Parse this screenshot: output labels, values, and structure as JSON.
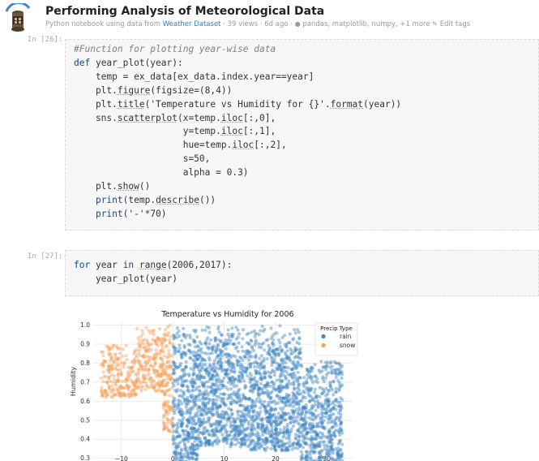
{
  "header": {
    "title": "Performing Analysis of Meteorological Data",
    "meta_prefix": "Python notebook using data from",
    "dataset_link": "Weather Dataset",
    "views": "39 views",
    "age": "6d ago",
    "tags": "pandas, matplotlib, numpy, +1 more",
    "edit_tags": "Edit tags",
    "icons": [
      "avatar-icon",
      "tag-icon",
      "pencil-icon"
    ]
  },
  "cells": [
    {
      "prompt": "In [26]:",
      "lines": [
        "#Function for plotting year-wise data",
        "def year_plot(year):",
        "    temp = ex_data[ex_data.index.year==year]",
        "    plt.figure(figsize=(8,4))",
        "    plt.title('Temperature vs Humidity for {}'.format(year))",
        "    sns.scatterplot(x=temp.iloc[:,0],",
        "                    y=temp.iloc[:,1],",
        "                    hue=temp.iloc[:,2],",
        "                    s=50,",
        "                    alpha = 0.3)",
        "    plt.show()",
        "    print(temp.describe())",
        "    print('-'*70)"
      ]
    },
    {
      "prompt": "In [27]:",
      "lines": [
        "for year in range(2006,2017):",
        "    year_plot(year)"
      ]
    }
  ],
  "chart_data": {
    "type": "scatter",
    "title": "Temperature vs Humidity for 2006",
    "xlabel": "",
    "ylabel": "Humidity",
    "x_ticks": [
      -10,
      0,
      10,
      20,
      30
    ],
    "y_ticks": [
      0.3,
      0.4,
      0.5,
      0.6,
      0.7,
      0.8,
      0.9,
      1.0
    ],
    "xlim": [
      -15.5,
      35
    ],
    "ylim": [
      0.26,
      1.02
    ],
    "grid": true,
    "legend": {
      "title": "Precip Type",
      "placement": "top-right",
      "entries": [
        {
          "name": "rain",
          "color": "#3f86c1"
        },
        {
          "name": "snow",
          "color": "#f5a05a"
        }
      ]
    },
    "series": [
      {
        "name": "rain",
        "color": "#3f86c1",
        "regions": [
          {
            "x": [
              0,
              5
            ],
            "y": [
              0.28,
              1.0
            ]
          },
          {
            "x": [
              5,
              15
            ],
            "y": [
              0.36,
              1.0
            ]
          },
          {
            "x": [
              15,
              25
            ],
            "y": [
              0.34,
              1.0
            ]
          },
          {
            "x": [
              25,
              33
            ],
            "y": [
              0.28,
              0.82
            ]
          }
        ]
      },
      {
        "name": "snow",
        "color": "#f5a05a",
        "regions": [
          {
            "x": [
              -14,
              -7
            ],
            "y": [
              0.62,
              0.9
            ]
          },
          {
            "x": [
              -7,
              -2
            ],
            "y": [
              0.65,
              1.0
            ]
          },
          {
            "x": [
              -2,
              0
            ],
            "y": [
              0.42,
              1.0
            ]
          }
        ]
      }
    ]
  }
}
